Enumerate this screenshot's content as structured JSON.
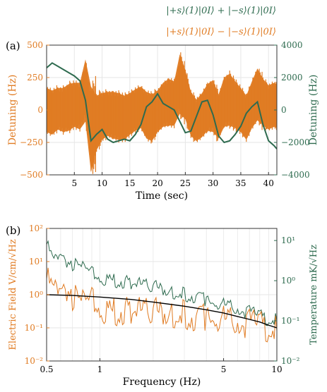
{
  "panels": {
    "a_label": "(a)",
    "b_label": "(b)"
  },
  "chart_data": [
    {
      "type": "line",
      "panel": "(a)",
      "xlabel": "Time (sec)",
      "ylabel_left": "Detuning (Hz)",
      "ylabel_right": "Detuning (Hz)",
      "xlim": [
        0,
        41.5
      ],
      "ylim_left": [
        -500,
        500
      ],
      "ylim_right": [
        -4000,
        4000
      ],
      "x_ticks": [
        5,
        10,
        15,
        20,
        25,
        30,
        35,
        40
      ],
      "y_ticks_left": [
        500,
        250,
        0,
        -250,
        -500
      ],
      "y_ticks_right": [
        4000,
        2000,
        0,
        -2000,
        -4000
      ],
      "grid": true,
      "legend_position": "top-right, above plot",
      "series": [
        {
          "name": "|+s⟩(1)|0I⟩ + |−s⟩(1)|0I⟩",
          "axis": "right",
          "color": "#2e6b4f",
          "x": [
            0,
            1,
            2,
            3,
            4,
            5,
            6,
            7,
            8,
            9,
            10,
            11,
            12,
            13,
            14,
            15,
            16,
            17,
            18,
            19,
            20,
            21,
            22,
            23,
            24,
            25,
            26,
            27,
            28,
            29,
            30,
            31,
            32,
            33,
            34,
            35,
            36,
            37,
            38,
            39,
            40,
            41,
            41.5
          ],
          "y": [
            2600,
            2900,
            2700,
            2500,
            2300,
            2100,
            1800,
            600,
            -1900,
            -1500,
            -1200,
            -1800,
            -2000,
            -1900,
            -1800,
            -1900,
            -1500,
            -900,
            200,
            500,
            1000,
            400,
            200,
            0,
            -700,
            -1400,
            -1300,
            -400,
            500,
            600,
            -300,
            -1600,
            -2000,
            -1900,
            -1500,
            -1000,
            -200,
            200,
            500,
            -900,
            -1900,
            -2200,
            -2400
          ]
        },
        {
          "name": "|+s⟩(1)|0I⟩ − |−s⟩(1)|0I⟩",
          "axis": "left",
          "color": "#e07b22",
          "x": [
            0,
            1,
            2,
            3,
            4,
            5,
            6,
            7,
            8,
            9,
            10,
            11,
            12,
            13,
            14,
            15,
            16,
            17,
            18,
            19,
            20,
            21,
            22,
            23,
            24,
            25,
            26,
            27,
            28,
            29,
            30,
            31,
            32,
            33,
            34,
            35,
            36,
            37,
            38,
            39,
            40,
            41,
            41.5
          ],
          "y": [
            0,
            -20,
            10,
            0,
            20,
            40,
            30,
            150,
            -150,
            -100,
            -50,
            -30,
            -40,
            -50,
            -60,
            -30,
            0,
            20,
            -40,
            -60,
            -10,
            40,
            60,
            50,
            200,
            120,
            -30,
            -80,
            -40,
            20,
            30,
            -50,
            60,
            80,
            40,
            0,
            -60,
            40,
            120,
            60,
            20,
            40,
            30
          ],
          "band": [
            170,
            170,
            160,
            170,
            180,
            170,
            180,
            240,
            330,
            210,
            180,
            170,
            180,
            180,
            170,
            160,
            160,
            160,
            180,
            180,
            160,
            170,
            180,
            170,
            230,
            190,
            170,
            160,
            170,
            180,
            200,
            170,
            190,
            200,
            180,
            170,
            170,
            180,
            200,
            180,
            170,
            170,
            170
          ]
        }
      ]
    },
    {
      "type": "line",
      "panel": "(b)",
      "xlabel": "Frequency (Hz)",
      "ylabel_left": "Electric Field V/cm/√Hz",
      "ylabel_right": "Temperature mK/√Hz",
      "x_scale": "log",
      "y_scale_left": "log",
      "y_scale_right": "log",
      "xlim": [
        0.5,
        10
      ],
      "ylim_left": [
        0.01,
        100
      ],
      "ylim_right": [
        0.01,
        20
      ],
      "x_ticks": [
        0.5,
        1,
        5,
        10
      ],
      "x_tick_labels": [
        "0.5",
        "1",
        "5",
        "10"
      ],
      "y_ticks_left": [
        0.01,
        0.1,
        1,
        10,
        100
      ],
      "y_tick_labels_left": [
        "10⁻²",
        "10⁻¹",
        "10⁰",
        "10¹",
        "10²"
      ],
      "y_ticks_right": [
        0.01,
        0.1,
        1,
        10
      ],
      "y_tick_labels_right": [
        "10⁻²",
        "10⁻¹",
        "10⁰",
        "10¹"
      ],
      "grid": true,
      "series": [
        {
          "axis": "right",
          "color": "#2e6b4f",
          "x": [
            0.5,
            0.55,
            0.6,
            0.65,
            0.7,
            0.8,
            0.9,
            1.0,
            1.2,
            1.5,
            2,
            2.5,
            3,
            3.5,
            4,
            5,
            6,
            7,
            8,
            9,
            10
          ],
          "y": [
            8,
            3,
            6,
            3,
            2.5,
            2,
            1.5,
            1.2,
            1.0,
            0.9,
            0.7,
            0.55,
            0.45,
            0.4,
            0.32,
            0.25,
            0.2,
            0.16,
            0.13,
            0.11,
            0.1
          ]
        },
        {
          "axis": "left",
          "color": "#e07b22",
          "x": [
            0.5,
            0.55,
            0.6,
            0.65,
            0.7,
            0.8,
            0.9,
            1.0,
            1.2,
            1.5,
            2,
            2.5,
            3,
            3.5,
            4,
            5,
            6,
            7,
            8,
            9,
            10
          ],
          "y": [
            3,
            1.2,
            3,
            1.5,
            0.8,
            0.5,
            0.6,
            0.4,
            0.3,
            0.35,
            0.3,
            0.28,
            0.25,
            0.2,
            0.2,
            0.18,
            0.15,
            0.13,
            0.12,
            0.1,
            0.08
          ]
        },
        {
          "axis": "left",
          "color": "#000000",
          "x": [
            0.5,
            0.7,
            1,
            1.5,
            2,
            3,
            4,
            5,
            6,
            7,
            8,
            9,
            10
          ],
          "y": [
            1.0,
            0.95,
            0.85,
            0.72,
            0.6,
            0.45,
            0.35,
            0.28,
            0.22,
            0.18,
            0.15,
            0.12,
            0.1
          ]
        }
      ]
    }
  ]
}
